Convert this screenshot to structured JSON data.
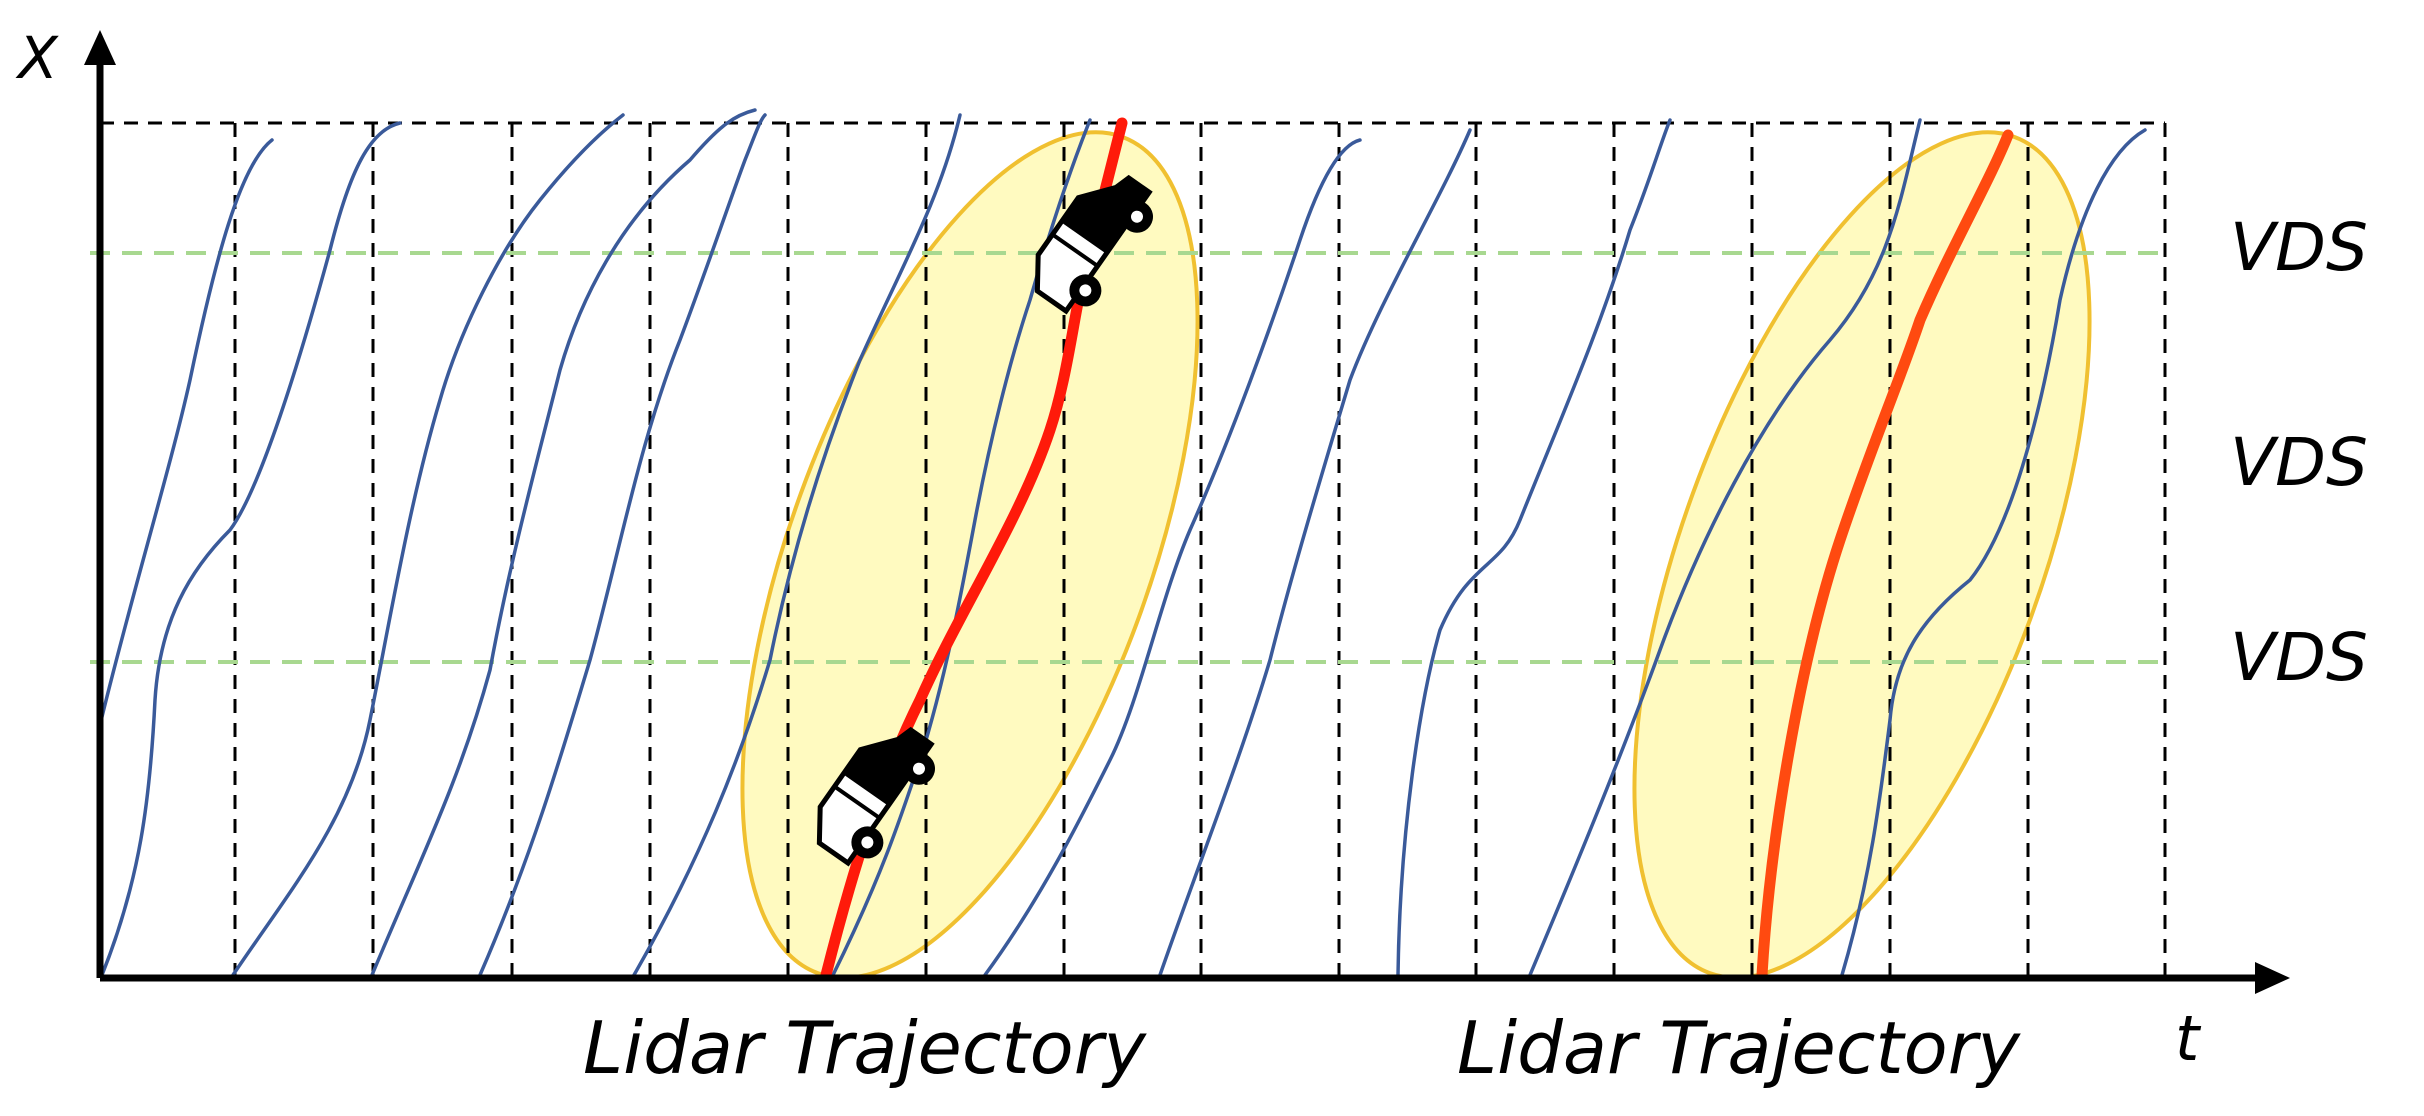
{
  "axes": {
    "x_label": "t",
    "y_label": "X"
  },
  "detector_labels": [
    "VDS",
    "VDS",
    "VDS"
  ],
  "lidar_labels": [
    "Lidar Trajectory",
    "Lidar Trajectory"
  ],
  "colors": {
    "axis": "#000000",
    "trajectory": "#3a5a9a",
    "lidar_trajectory_1": "#ff1a0a",
    "lidar_trajectory_2": "#ff4a10",
    "detector_line": "#a8d890",
    "highlight_fill": "#fffac0",
    "highlight_stroke": "#f0c030",
    "grid": "#000000"
  },
  "icons": [
    "car-icon",
    "car-icon"
  ]
}
